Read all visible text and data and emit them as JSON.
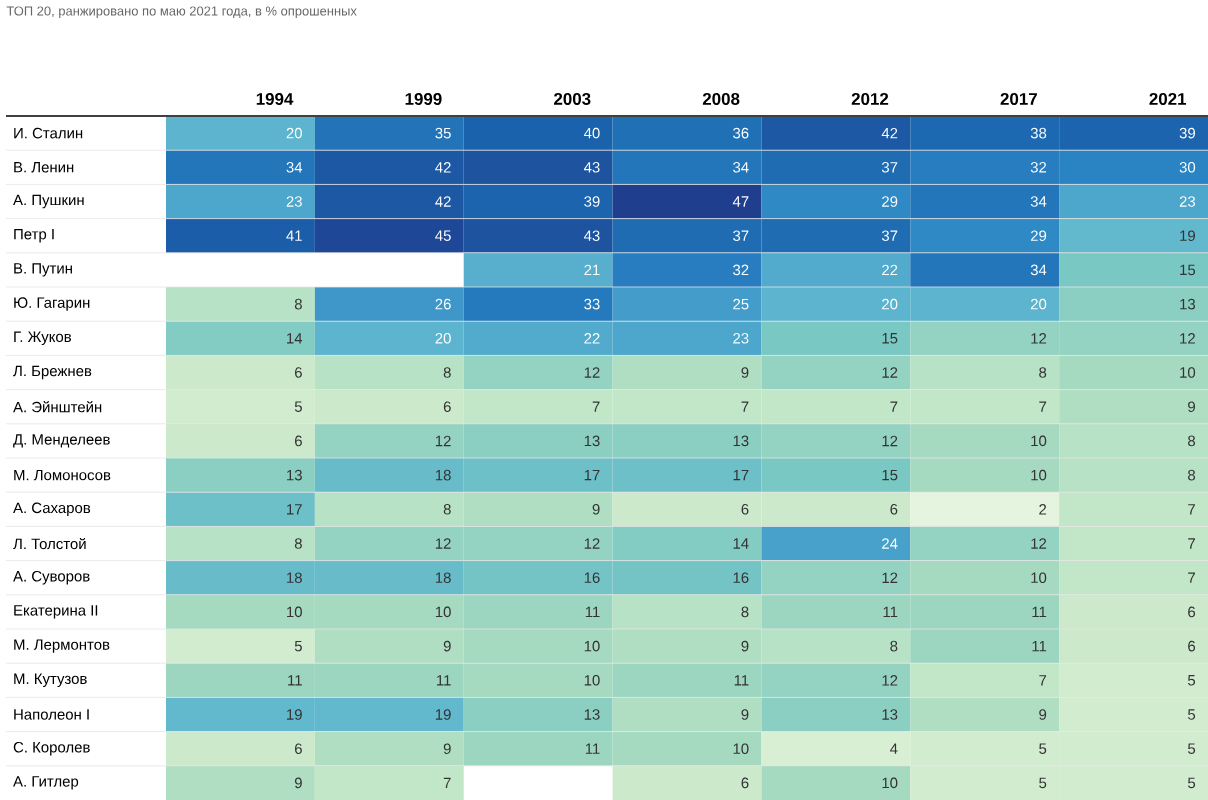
{
  "chart_data": {
    "type": "heatmap",
    "subtitle": "ТОП 20, ранжировано по маю 2021 года, в % опрошенных",
    "data_labels": true,
    "categories": [
      "1994",
      "1999",
      "2003",
      "2008",
      "2012",
      "2017",
      "2021"
    ],
    "y_categories": [
      "И. Сталин",
      "В. Ленин",
      "А. Пушкин",
      "Петр I",
      "В. Путин",
      "Ю. Гагарин",
      "Г. Жуков",
      "Л. Брежнев",
      "А. Эйнштейн",
      "Д. Менделеев",
      "М. Ломоносов",
      "А. Сахаров",
      "Л. Толстой",
      "А. Суворов",
      "Екатерина II",
      "М. Лермонтов",
      "М. Кутузов",
      "Наполеон I",
      "С. Королев",
      "А. Гитлер"
    ],
    "cells": [
      [
        20,
        35,
        40,
        36,
        42,
        38,
        39
      ],
      [
        34,
        42,
        43,
        34,
        37,
        32,
        30
      ],
      [
        23,
        42,
        39,
        47,
        29,
        34,
        23
      ],
      [
        41,
        45,
        43,
        37,
        37,
        29,
        19
      ],
      [
        null,
        null,
        21,
        32,
        22,
        34,
        15
      ],
      [
        8,
        26,
        33,
        25,
        20,
        20,
        13
      ],
      [
        14,
        20,
        22,
        23,
        15,
        12,
        12
      ],
      [
        6,
        8,
        12,
        9,
        12,
        8,
        10
      ],
      [
        5,
        6,
        7,
        7,
        7,
        7,
        9
      ],
      [
        6,
        12,
        13,
        13,
        12,
        10,
        8
      ],
      [
        13,
        18,
        17,
        17,
        15,
        10,
        8
      ],
      [
        17,
        8,
        9,
        6,
        6,
        2,
        7
      ],
      [
        8,
        12,
        12,
        14,
        24,
        12,
        7
      ],
      [
        18,
        18,
        16,
        16,
        12,
        10,
        7
      ],
      [
        10,
        10,
        11,
        8,
        11,
        11,
        6
      ],
      [
        5,
        9,
        10,
        9,
        8,
        11,
        6
      ],
      [
        11,
        11,
        10,
        11,
        12,
        7,
        5
      ],
      [
        19,
        19,
        13,
        9,
        13,
        9,
        5
      ],
      [
        6,
        9,
        11,
        10,
        4,
        5,
        5
      ],
      [
        9,
        7,
        null,
        6,
        10,
        5,
        5
      ]
    ]
  }
}
